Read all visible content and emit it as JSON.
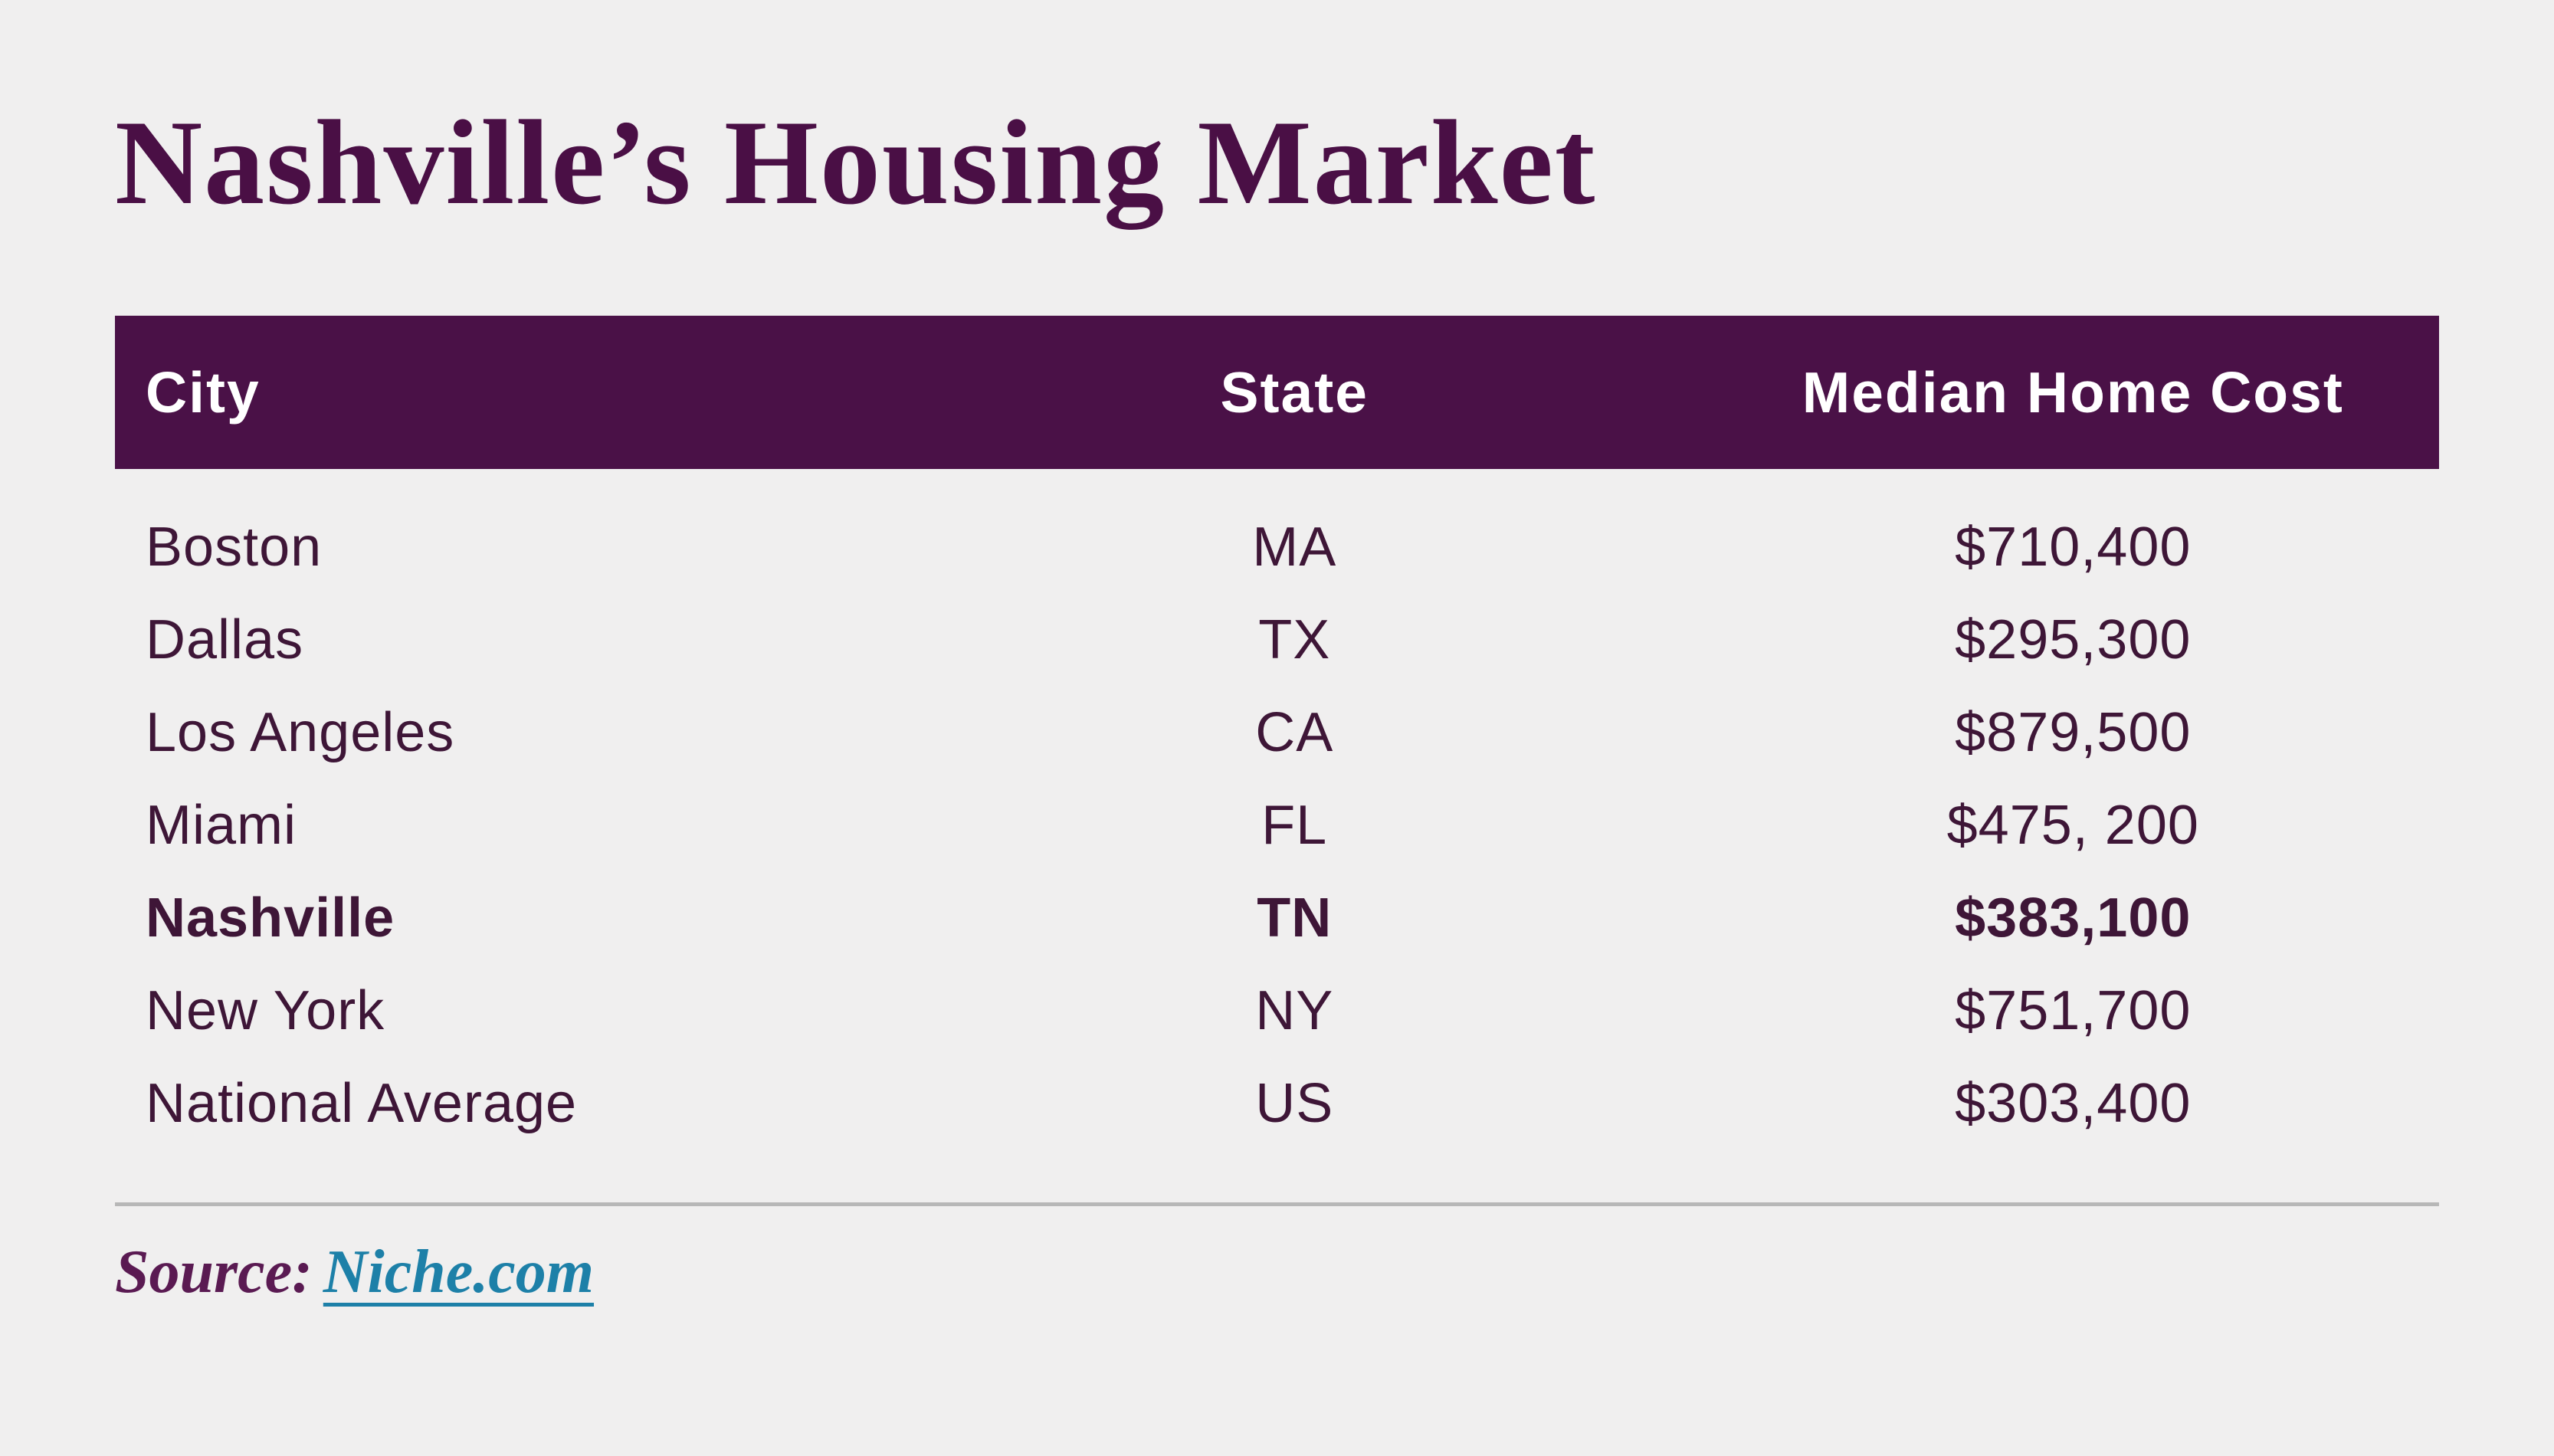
{
  "page": {
    "background_color": "#f0efef"
  },
  "title": {
    "text": "Nashville’s Housing Market",
    "color": "#4a0f45"
  },
  "table": {
    "header": {
      "columns": [
        "City",
        "State",
        "Median Home Cost"
      ],
      "background_color": "#4a1147",
      "text_color": "#ffffff"
    },
    "body_text_color": "#3e1637",
    "rows": [
      {
        "city": "Boston",
        "state": "MA",
        "cost": "$710,400",
        "highlight": false
      },
      {
        "city": "Dallas",
        "state": "TX",
        "cost": "$295,300",
        "highlight": false
      },
      {
        "city": "Los Angeles",
        "state": "CA",
        "cost": "$879,500",
        "highlight": false
      },
      {
        "city": "Miami",
        "state": "FL",
        "cost": "$475, 200",
        "highlight": false
      },
      {
        "city": "Nashville",
        "state": "TN",
        "cost": "$383,100",
        "highlight": true
      },
      {
        "city": "New York",
        "state": "NY",
        "cost": "$751,700",
        "highlight": false
      },
      {
        "city": "National Average",
        "state": "US",
        "cost": "$303,400",
        "highlight": false
      }
    ]
  },
  "footer": {
    "source_label": "Source:",
    "link_text": "Niche.com",
    "label_color": "#5a1a52",
    "link_color": "#1d80a8",
    "divider_color": "#b7b7b7"
  },
  "chart_data": {
    "type": "table",
    "title": "Nashville’s Housing Market",
    "columns": [
      "City",
      "State",
      "Median Home Cost"
    ],
    "categories": [
      "Boston",
      "Dallas",
      "Los Angeles",
      "Miami",
      "Nashville",
      "New York",
      "National Average"
    ],
    "states": [
      "MA",
      "TX",
      "CA",
      "FL",
      "TN",
      "NY",
      "US"
    ],
    "values": [
      710400,
      295300,
      879500,
      475200,
      383100,
      751700,
      303400
    ],
    "highlighted_row": "Nashville",
    "source": "Niche.com"
  }
}
